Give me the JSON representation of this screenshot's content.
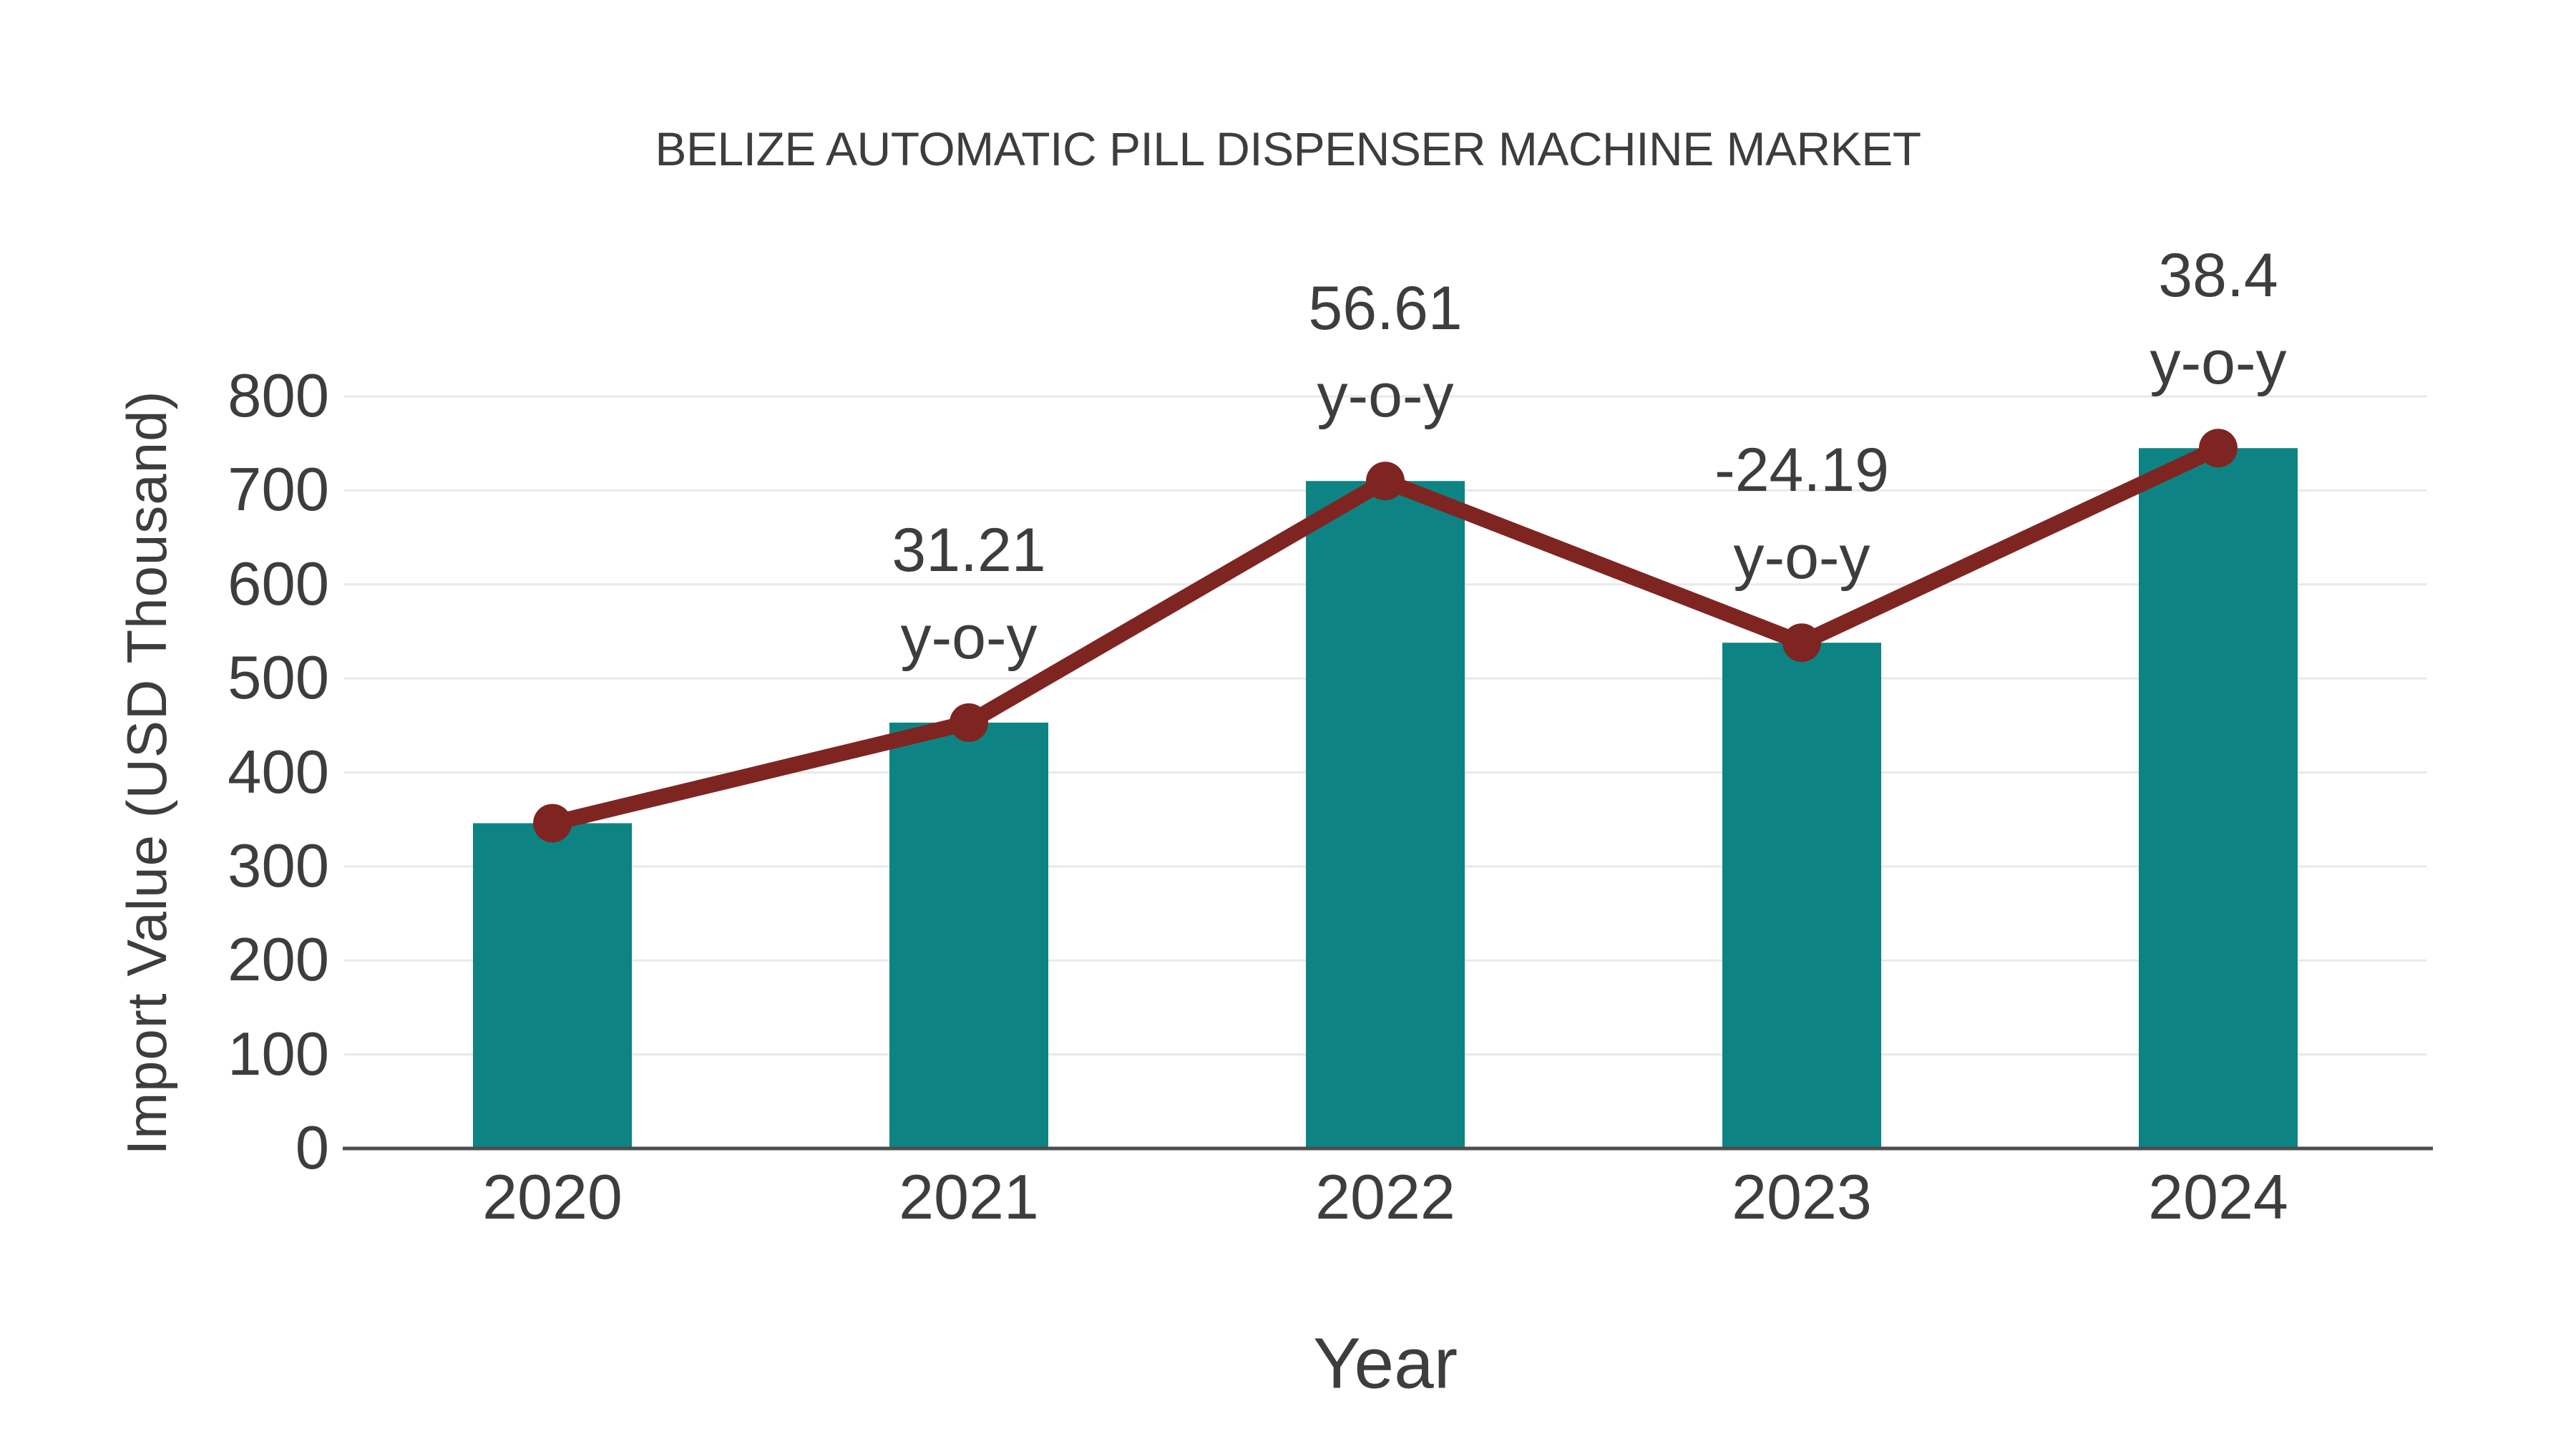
{
  "title": "BELIZE AUTOMATIC PILL DISPENSER MACHINE MARKET",
  "chart_data": {
    "type": "bar",
    "categories": [
      "2020",
      "2021",
      "2022",
      "2023",
      "2024"
    ],
    "values": [
      346,
      453,
      710,
      538,
      745
    ],
    "series": [
      {
        "name": "Import Value",
        "type": "bar",
        "values": [
          346,
          453,
          710,
          538,
          745
        ]
      },
      {
        "name": "y-o-y trend line",
        "type": "line",
        "values": [
          346,
          453,
          710,
          538,
          745
        ]
      }
    ],
    "yoy_labels": [
      "",
      "31.21",
      "56.61",
      "-24.19",
      "38.4"
    ],
    "yoy_percent": [
      null,
      31.21,
      56.61,
      -24.19,
      38.4
    ],
    "annotation_suffix": "y-o-y",
    "title": "BELIZE AUTOMATIC PILL DISPENSER MACHINE MARKET",
    "xlabel": "Year",
    "ylabel": "Import Value (USD Thousand)",
    "yticks": [
      0,
      100,
      200,
      300,
      400,
      500,
      600,
      700,
      800
    ],
    "ylim": [
      0,
      800
    ],
    "grid": true,
    "legend": "none",
    "colors": {
      "bar": "#0d8483",
      "line": "#7e2522",
      "marker": "#7e2522",
      "grid": "#e9e9e9",
      "axis": "#4d4d4d",
      "text": "#3d3d3d",
      "background": "#ffffff"
    }
  }
}
